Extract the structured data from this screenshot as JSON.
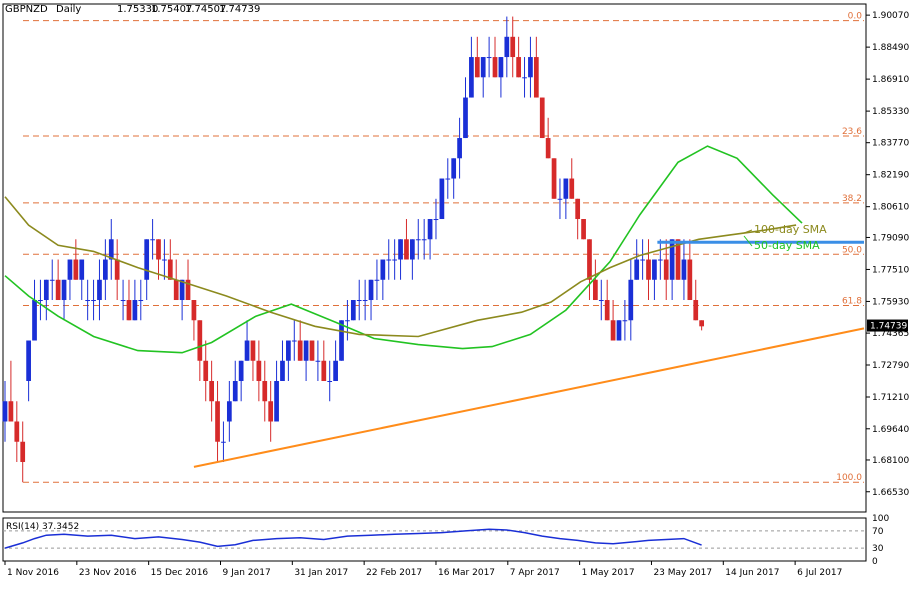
{
  "chart_data": {
    "type": "candlestick",
    "symbol": "GBPNZD",
    "timeframe": "Daily",
    "ohlc": {
      "open": "1.75330",
      "high": "1.75407",
      "low": "1.74507",
      "close": "1.74739"
    },
    "current_price_label": "1.74739",
    "ylim": [
      1.6553,
      1.9062
    ],
    "y_ticks": [
      "1.90070",
      "1.88490",
      "1.86910",
      "1.85330",
      "1.83770",
      "1.82190",
      "1.80610",
      "1.79090",
      "1.77510",
      "1.75930",
      "1.74365",
      "1.72790",
      "1.71210",
      "1.69640",
      "1.68100",
      "1.66530"
    ],
    "x_ticks": [
      "1 Nov 2016",
      "23 Nov 2016",
      "15 Dec 2016",
      "9 Jan 2017",
      "31 Jan 2017",
      "22 Feb 2017",
      "16 Mar 2017",
      "7 Apr 2017",
      "1 May 2017",
      "23 May 2017",
      "14 Jun 2017",
      "6 Jul 2017"
    ],
    "fibonacci_levels": [
      {
        "label": "0.0",
        "price": 1.898
      },
      {
        "label": "23.6",
        "price": 1.841
      },
      {
        "label": "38.2",
        "price": 1.808
      },
      {
        "label": "50.0",
        "price": 1.7826
      },
      {
        "label": "61.8",
        "price": 1.7573
      },
      {
        "label": "100.0",
        "price": 1.67
      }
    ],
    "annotations": [
      "100-day SMA",
      "50-day SMA"
    ],
    "indicators": [
      {
        "name": "50-day SMA",
        "color": "#22c322",
        "points": [
          [
            0,
            1.772
          ],
          [
            8,
            1.762
          ],
          [
            18,
            1.752
          ],
          [
            30,
            1.742
          ],
          [
            45,
            1.735
          ],
          [
            60,
            1.734
          ],
          [
            70,
            1.739
          ],
          [
            85,
            1.752
          ],
          [
            97,
            1.758
          ],
          [
            112,
            1.749
          ],
          [
            125,
            1.741
          ],
          [
            140,
            1.738
          ],
          [
            155,
            1.736
          ],
          [
            165,
            1.737
          ],
          [
            178,
            1.743
          ],
          [
            190,
            1.755
          ],
          [
            205,
            1.779
          ],
          [
            215,
            1.802
          ],
          [
            228,
            1.828
          ],
          [
            238,
            1.836
          ],
          [
            248,
            1.83
          ],
          [
            260,
            1.812
          ],
          [
            270,
            1.798
          ]
        ]
      },
      {
        "name": "100-day SMA",
        "color": "#8c8a1e",
        "points": [
          [
            0,
            1.811
          ],
          [
            8,
            1.797
          ],
          [
            18,
            1.787
          ],
          [
            30,
            1.784
          ],
          [
            45,
            1.776
          ],
          [
            60,
            1.769
          ],
          [
            75,
            1.762
          ],
          [
            90,
            1.754
          ],
          [
            105,
            1.747
          ],
          [
            120,
            1.743
          ],
          [
            140,
            1.742
          ],
          [
            160,
            1.75
          ],
          [
            175,
            1.754
          ],
          [
            185,
            1.759
          ],
          [
            195,
            1.769
          ],
          [
            205,
            1.776
          ],
          [
            215,
            1.782
          ],
          [
            225,
            1.786
          ],
          [
            235,
            1.79
          ],
          [
            245,
            1.792
          ],
          [
            255,
            1.794
          ],
          [
            268,
            1.797
          ]
        ]
      }
    ],
    "support_trendline": {
      "color": "#ff8c1a",
      "from": [
        64,
        1.6776
      ],
      "to": [
        291,
        1.746
      ]
    },
    "resistance_line": {
      "color": "#3a8ee6",
      "from": [
        221,
        1.7885
      ],
      "to": [
        291,
        1.7885
      ]
    },
    "candles_sampled": [
      [
        0,
        1.7,
        1.72,
        1.69,
        1.71
      ],
      [
        2,
        1.71,
        1.73,
        1.7,
        1.7
      ],
      [
        4,
        1.7,
        1.71,
        1.68,
        1.69
      ],
      [
        6,
        1.69,
        1.7,
        1.67,
        1.68
      ],
      [
        8,
        1.72,
        1.74,
        1.71,
        1.74
      ],
      [
        10,
        1.74,
        1.77,
        1.74,
        1.76
      ],
      [
        12,
        1.76,
        1.77,
        1.75,
        1.76
      ],
      [
        14,
        1.76,
        1.77,
        1.75,
        1.77
      ],
      [
        16,
        1.77,
        1.78,
        1.76,
        1.77
      ],
      [
        18,
        1.77,
        1.78,
        1.76,
        1.76
      ],
      [
        20,
        1.76,
        1.77,
        1.75,
        1.77
      ],
      [
        22,
        1.77,
        1.78,
        1.76,
        1.78
      ],
      [
        24,
        1.78,
        1.79,
        1.77,
        1.77
      ],
      [
        26,
        1.77,
        1.78,
        1.76,
        1.78
      ],
      [
        28,
        1.76,
        1.77,
        1.75,
        1.76
      ],
      [
        30,
        1.76,
        1.77,
        1.75,
        1.76
      ],
      [
        32,
        1.76,
        1.78,
        1.75,
        1.77
      ],
      [
        34,
        1.77,
        1.79,
        1.76,
        1.78
      ],
      [
        36,
        1.78,
        1.8,
        1.77,
        1.79
      ],
      [
        38,
        1.78,
        1.79,
        1.76,
        1.77
      ],
      [
        40,
        1.76,
        1.77,
        1.75,
        1.76
      ],
      [
        42,
        1.76,
        1.77,
        1.75,
        1.75
      ],
      [
        44,
        1.75,
        1.77,
        1.75,
        1.76
      ],
      [
        46,
        1.76,
        1.77,
        1.75,
        1.76
      ],
      [
        48,
        1.77,
        1.79,
        1.76,
        1.79
      ],
      [
        50,
        1.79,
        1.8,
        1.78,
        1.79
      ],
      [
        52,
        1.79,
        1.79,
        1.77,
        1.78
      ],
      [
        54,
        1.78,
        1.79,
        1.77,
        1.78
      ],
      [
        56,
        1.78,
        1.79,
        1.77,
        1.77
      ],
      [
        58,
        1.77,
        1.78,
        1.76,
        1.76
      ],
      [
        60,
        1.76,
        1.77,
        1.75,
        1.77
      ],
      [
        62,
        1.77,
        1.78,
        1.76,
        1.76
      ],
      [
        64,
        1.76,
        1.76,
        1.74,
        1.75
      ],
      [
        66,
        1.75,
        1.75,
        1.72,
        1.73
      ],
      [
        68,
        1.73,
        1.74,
        1.71,
        1.72
      ],
      [
        70,
        1.72,
        1.73,
        1.7,
        1.71
      ],
      [
        72,
        1.71,
        1.72,
        1.68,
        1.69
      ],
      [
        74,
        1.69,
        1.7,
        1.68,
        1.69
      ],
      [
        76,
        1.7,
        1.72,
        1.69,
        1.71
      ],
      [
        78,
        1.71,
        1.73,
        1.71,
        1.72
      ],
      [
        80,
        1.72,
        1.73,
        1.71,
        1.73
      ],
      [
        82,
        1.73,
        1.75,
        1.73,
        1.74
      ],
      [
        84,
        1.74,
        1.74,
        1.72,
        1.73
      ],
      [
        86,
        1.73,
        1.74,
        1.71,
        1.72
      ],
      [
        88,
        1.72,
        1.73,
        1.7,
        1.71
      ],
      [
        90,
        1.71,
        1.72,
        1.69,
        1.7
      ],
      [
        92,
        1.7,
        1.73,
        1.7,
        1.72
      ],
      [
        94,
        1.72,
        1.74,
        1.72,
        1.73
      ],
      [
        96,
        1.73,
        1.74,
        1.72,
        1.74
      ],
      [
        98,
        1.74,
        1.75,
        1.73,
        1.74
      ],
      [
        100,
        1.74,
        1.75,
        1.73,
        1.73
      ],
      [
        102,
        1.73,
        1.74,
        1.72,
        1.74
      ],
      [
        104,
        1.74,
        1.74,
        1.73,
        1.73
      ],
      [
        106,
        1.73,
        1.74,
        1.72,
        1.73
      ],
      [
        108,
        1.73,
        1.74,
        1.72,
        1.72
      ],
      [
        110,
        1.72,
        1.73,
        1.71,
        1.72
      ],
      [
        112,
        1.72,
        1.74,
        1.72,
        1.73
      ],
      [
        114,
        1.73,
        1.75,
        1.73,
        1.75
      ],
      [
        116,
        1.75,
        1.76,
        1.74,
        1.75
      ],
      [
        118,
        1.75,
        1.76,
        1.75,
        1.76
      ],
      [
        120,
        1.76,
        1.77,
        1.75,
        1.76
      ],
      [
        122,
        1.76,
        1.77,
        1.75,
        1.76
      ],
      [
        124,
        1.76,
        1.77,
        1.75,
        1.77
      ],
      [
        126,
        1.77,
        1.78,
        1.76,
        1.77
      ],
      [
        128,
        1.77,
        1.78,
        1.76,
        1.78
      ],
      [
        130,
        1.78,
        1.79,
        1.77,
        1.78
      ],
      [
        132,
        1.78,
        1.79,
        1.77,
        1.78
      ],
      [
        134,
        1.78,
        1.79,
        1.77,
        1.79
      ],
      [
        136,
        1.79,
        1.8,
        1.78,
        1.78
      ],
      [
        138,
        1.78,
        1.79,
        1.77,
        1.79
      ],
      [
        140,
        1.79,
        1.8,
        1.78,
        1.79
      ],
      [
        142,
        1.79,
        1.8,
        1.78,
        1.79
      ],
      [
        144,
        1.79,
        1.8,
        1.78,
        1.8
      ],
      [
        146,
        1.8,
        1.81,
        1.79,
        1.8
      ],
      [
        148,
        1.8,
        1.82,
        1.8,
        1.82
      ],
      [
        150,
        1.82,
        1.83,
        1.81,
        1.82
      ],
      [
        152,
        1.82,
        1.83,
        1.81,
        1.83
      ],
      [
        154,
        1.83,
        1.85,
        1.82,
        1.84
      ],
      [
        156,
        1.84,
        1.87,
        1.84,
        1.86
      ],
      [
        158,
        1.86,
        1.89,
        1.86,
        1.88
      ],
      [
        160,
        1.88,
        1.89,
        1.87,
        1.87
      ],
      [
        162,
        1.87,
        1.88,
        1.86,
        1.88
      ],
      [
        164,
        1.88,
        1.89,
        1.87,
        1.88
      ],
      [
        166,
        1.88,
        1.89,
        1.87,
        1.87
      ],
      [
        168,
        1.87,
        1.88,
        1.86,
        1.88
      ],
      [
        170,
        1.88,
        1.9,
        1.87,
        1.89
      ],
      [
        172,
        1.89,
        1.9,
        1.87,
        1.88
      ],
      [
        174,
        1.88,
        1.89,
        1.87,
        1.87
      ],
      [
        176,
        1.87,
        1.88,
        1.86,
        1.87
      ],
      [
        178,
        1.87,
        1.89,
        1.86,
        1.88
      ],
      [
        180,
        1.88,
        1.89,
        1.86,
        1.86
      ],
      [
        182,
        1.86,
        1.86,
        1.84,
        1.84
      ],
      [
        184,
        1.84,
        1.85,
        1.83,
        1.83
      ],
      [
        186,
        1.83,
        1.83,
        1.81,
        1.81
      ],
      [
        188,
        1.81,
        1.82,
        1.8,
        1.81
      ],
      [
        190,
        1.81,
        1.82,
        1.8,
        1.82
      ],
      [
        192,
        1.82,
        1.83,
        1.81,
        1.81
      ],
      [
        194,
        1.81,
        1.81,
        1.79,
        1.8
      ],
      [
        196,
        1.8,
        1.8,
        1.79,
        1.79
      ],
      [
        198,
        1.79,
        1.79,
        1.76,
        1.77
      ],
      [
        200,
        1.77,
        1.78,
        1.76,
        1.76
      ],
      [
        202,
        1.76,
        1.77,
        1.75,
        1.76
      ],
      [
        204,
        1.76,
        1.77,
        1.75,
        1.75
      ],
      [
        206,
        1.75,
        1.76,
        1.74,
        1.74
      ],
      [
        208,
        1.74,
        1.75,
        1.74,
        1.75
      ],
      [
        210,
        1.75,
        1.76,
        1.74,
        1.75
      ],
      [
        212,
        1.75,
        1.78,
        1.74,
        1.77
      ],
      [
        214,
        1.77,
        1.79,
        1.77,
        1.78
      ],
      [
        216,
        1.78,
        1.79,
        1.77,
        1.78
      ],
      [
        218,
        1.78,
        1.79,
        1.76,
        1.77
      ],
      [
        220,
        1.77,
        1.78,
        1.76,
        1.78
      ],
      [
        222,
        1.78,
        1.79,
        1.77,
        1.78
      ],
      [
        224,
        1.78,
        1.79,
        1.76,
        1.77
      ],
      [
        226,
        1.77,
        1.79,
        1.76,
        1.79
      ],
      [
        228,
        1.79,
        1.79,
        1.77,
        1.77
      ],
      [
        230,
        1.77,
        1.79,
        1.76,
        1.78
      ],
      [
        232,
        1.78,
        1.79,
        1.76,
        1.76
      ],
      [
        234,
        1.76,
        1.77,
        1.75,
        1.75
      ],
      [
        236,
        1.75,
        1.75,
        1.745,
        1.747
      ]
    ],
    "rsi": {
      "label": "RSI(14) 37.3452",
      "period": 14,
      "value": 37.3452,
      "ylim": [
        0,
        100
      ],
      "y_ticks": [
        "100",
        "70",
        "30",
        "0"
      ],
      "levels": [
        70,
        30
      ],
      "color": "#1a2fd6",
      "points": [
        [
          0,
          30
        ],
        [
          6,
          42
        ],
        [
          10,
          52
        ],
        [
          14,
          60
        ],
        [
          20,
          62
        ],
        [
          28,
          58
        ],
        [
          36,
          60
        ],
        [
          44,
          52
        ],
        [
          52,
          56
        ],
        [
          60,
          50
        ],
        [
          66,
          44
        ],
        [
          72,
          34
        ],
        [
          78,
          38
        ],
        [
          84,
          48
        ],
        [
          92,
          52
        ],
        [
          100,
          54
        ],
        [
          108,
          50
        ],
        [
          116,
          58
        ],
        [
          124,
          60
        ],
        [
          132,
          62
        ],
        [
          140,
          64
        ],
        [
          148,
          66
        ],
        [
          156,
          70
        ],
        [
          164,
          74
        ],
        [
          170,
          72
        ],
        [
          176,
          66
        ],
        [
          182,
          58
        ],
        [
          188,
          52
        ],
        [
          194,
          48
        ],
        [
          200,
          42
        ],
        [
          206,
          40
        ],
        [
          212,
          44
        ],
        [
          218,
          48
        ],
        [
          224,
          50
        ],
        [
          230,
          52
        ],
        [
          236,
          37
        ]
      ]
    },
    "total_bars": 292
  }
}
